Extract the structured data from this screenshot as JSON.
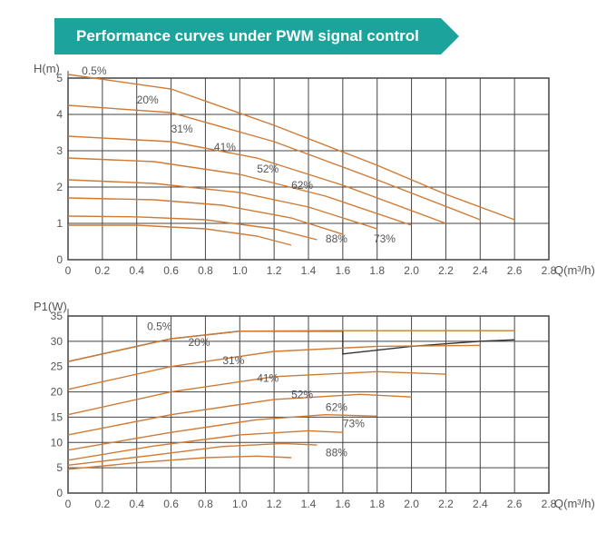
{
  "title": "Performance curves under PWM signal control",
  "title_bg": "#1ba39c",
  "title_color": "#ffffff",
  "curve_color": "#d07a34",
  "dark_curve_color": "#333333",
  "grid_color": "#444444",
  "background_color": "#ffffff",
  "text_color": "#555555",
  "chart_top": {
    "y_label": "H(m)",
    "x_label": "Q(m³/h)",
    "xlim": [
      0,
      2.8
    ],
    "ylim": [
      0,
      5
    ],
    "xticks": [
      0,
      0.2,
      0.4,
      0.6,
      0.8,
      1.0,
      1.2,
      1.4,
      1.6,
      1.8,
      2.0,
      2.2,
      2.4,
      2.6,
      2.8
    ],
    "yticks": [
      0,
      1,
      2,
      3,
      4,
      5
    ],
    "series": [
      {
        "label": "0.5%",
        "label_x": 0.08,
        "label_y": 5.1,
        "points": [
          [
            0,
            5.1
          ],
          [
            0.6,
            4.7
          ],
          [
            1.2,
            3.7
          ],
          [
            1.8,
            2.6
          ],
          [
            2.2,
            1.8
          ],
          [
            2.6,
            1.1
          ]
        ]
      },
      {
        "label": "20%",
        "label_x": 0.4,
        "label_y": 4.3,
        "points": [
          [
            0,
            4.25
          ],
          [
            0.6,
            4.05
          ],
          [
            1.2,
            3.25
          ],
          [
            1.8,
            2.2
          ],
          [
            2.4,
            1.1
          ]
        ]
      },
      {
        "label": "31%",
        "label_x": 0.6,
        "label_y": 3.5,
        "points": [
          [
            0,
            3.4
          ],
          [
            0.6,
            3.25
          ],
          [
            1.1,
            2.8
          ],
          [
            1.6,
            2.05
          ],
          [
            2.2,
            1.0
          ]
        ]
      },
      {
        "label": "41%",
        "label_x": 0.85,
        "label_y": 3.0,
        "points": [
          [
            0,
            2.8
          ],
          [
            0.5,
            2.7
          ],
          [
            1.0,
            2.35
          ],
          [
            1.5,
            1.75
          ],
          [
            2.0,
            0.95
          ]
        ]
      },
      {
        "label": "52%",
        "label_x": 1.1,
        "label_y": 2.4,
        "points": [
          [
            0,
            2.2
          ],
          [
            0.5,
            2.1
          ],
          [
            1.0,
            1.85
          ],
          [
            1.4,
            1.45
          ],
          [
            1.8,
            0.85
          ]
        ]
      },
      {
        "label": "62%",
        "label_x": 1.3,
        "label_y": 1.95,
        "points": [
          [
            0,
            1.7
          ],
          [
            0.5,
            1.65
          ],
          [
            0.9,
            1.5
          ],
          [
            1.3,
            1.15
          ],
          [
            1.6,
            0.7
          ]
        ]
      },
      {
        "label": "73%",
        "label_x": 1.78,
        "label_y": 0.48,
        "points": [
          [
            0,
            1.2
          ],
          [
            0.4,
            1.18
          ],
          [
            0.8,
            1.1
          ],
          [
            1.2,
            0.85
          ],
          [
            1.45,
            0.55
          ]
        ]
      },
      {
        "label": "88%",
        "label_x": 1.5,
        "label_y": 0.48,
        "points": [
          [
            0,
            0.95
          ],
          [
            0.4,
            0.95
          ],
          [
            0.8,
            0.85
          ],
          [
            1.1,
            0.65
          ],
          [
            1.3,
            0.4
          ]
        ]
      }
    ]
  },
  "chart_bottom": {
    "y_label": "P1(W)",
    "x_label": "Q(m³/h)",
    "xlim": [
      0,
      2.8
    ],
    "ylim": [
      0,
      35
    ],
    "xticks": [
      0,
      0.2,
      0.4,
      0.6,
      0.8,
      1.0,
      1.2,
      1.4,
      1.6,
      1.8,
      2.0,
      2.2,
      2.4,
      2.6,
      2.8
    ],
    "yticks": [
      0,
      5,
      10,
      15,
      20,
      25,
      30,
      35
    ],
    "dark_series": {
      "points": [
        [
          0,
          26
        ],
        [
          0.6,
          30.5
        ],
        [
          1.0,
          32
        ],
        [
          1.6,
          32
        ],
        [
          1.6,
          27.5
        ],
        [
          2.0,
          29
        ],
        [
          2.4,
          30
        ],
        [
          2.6,
          30.3
        ]
      ]
    },
    "series": [
      {
        "label": "0.5%",
        "label_x": 0.46,
        "label_y": 32.2,
        "points": [
          [
            0,
            26
          ],
          [
            0.6,
            30.5
          ],
          [
            1.0,
            32
          ],
          [
            1.5,
            32.1
          ],
          [
            2.0,
            32.1
          ],
          [
            2.6,
            32.1
          ]
        ]
      },
      {
        "label": "20%",
        "label_x": 0.7,
        "label_y": 29.1,
        "points": [
          [
            0,
            20.5
          ],
          [
            0.6,
            25
          ],
          [
            1.2,
            28
          ],
          [
            1.8,
            29
          ],
          [
            2.4,
            29.2
          ]
        ]
      },
      {
        "label": "31%",
        "label_x": 0.9,
        "label_y": 25.5,
        "points": [
          [
            0,
            15.5
          ],
          [
            0.6,
            20
          ],
          [
            1.2,
            23
          ],
          [
            1.8,
            24
          ],
          [
            2.2,
            23.5
          ]
        ]
      },
      {
        "label": "41%",
        "label_x": 1.1,
        "label_y": 22.0,
        "points": [
          [
            0,
            11.5
          ],
          [
            0.6,
            15.5
          ],
          [
            1.2,
            18.5
          ],
          [
            1.7,
            19.5
          ],
          [
            2.0,
            19
          ]
        ]
      },
      {
        "label": "52%",
        "label_x": 1.3,
        "label_y": 18.8,
        "points": [
          [
            0,
            8.5
          ],
          [
            0.6,
            12
          ],
          [
            1.1,
            14.5
          ],
          [
            1.5,
            15.5
          ],
          [
            1.8,
            15.2
          ]
        ]
      },
      {
        "label": "62%",
        "label_x": 1.5,
        "label_y": 16.2,
        "points": [
          [
            0,
            6.5
          ],
          [
            0.5,
            9.3
          ],
          [
            1.0,
            11.5
          ],
          [
            1.4,
            12.3
          ],
          [
            1.6,
            12
          ]
        ]
      },
      {
        "label": "73%",
        "label_x": 1.6,
        "label_y": 13.0,
        "points": [
          [
            0,
            5.5
          ],
          [
            0.5,
            7.5
          ],
          [
            0.9,
            9.2
          ],
          [
            1.25,
            9.8
          ],
          [
            1.45,
            9.5
          ]
        ]
      },
      {
        "label": "88%",
        "label_x": 1.5,
        "label_y": 7.3,
        "points": [
          [
            0,
            4.7
          ],
          [
            0.4,
            6
          ],
          [
            0.8,
            7
          ],
          [
            1.1,
            7.3
          ],
          [
            1.3,
            7
          ]
        ]
      }
    ]
  }
}
